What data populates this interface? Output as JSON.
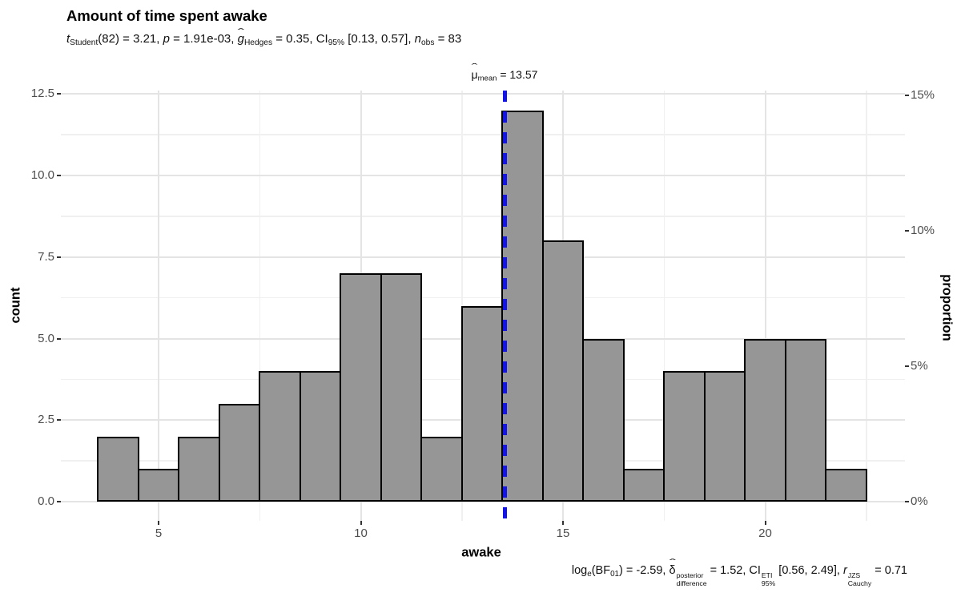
{
  "title": "Amount of time spent awake",
  "subtitle": {
    "segments": [
      {
        "v": "i",
        "t": "t"
      },
      {
        "v": "sub",
        "t": "Student"
      },
      {
        "v": "n",
        "t": "(82) = 3.21, "
      },
      {
        "v": "i",
        "t": "p"
      },
      {
        "v": "n",
        "t": " = 1.91e-03, "
      },
      {
        "v": "ihat",
        "t": "g"
      },
      {
        "v": "sub",
        "t": "Hedges"
      },
      {
        "v": "n",
        "t": " = 0.35, CI"
      },
      {
        "v": "sub",
        "t": "95%"
      },
      {
        "v": "n",
        "t": " [0.13, 0.57], "
      },
      {
        "v": "i",
        "t": "n"
      },
      {
        "v": "sub",
        "t": "obs"
      },
      {
        "v": "n",
        "t": " = 83"
      }
    ]
  },
  "caption": {
    "segments": [
      {
        "v": "n",
        "t": "log"
      },
      {
        "v": "sub",
        "t": "e"
      },
      {
        "v": "n",
        "t": "(BF"
      },
      {
        "v": "sub",
        "t": "01"
      },
      {
        "v": "n",
        "t": ") = -2.59, "
      },
      {
        "v": "hat",
        "t": "δ"
      },
      {
        "v": "stack",
        "sup": "posterior",
        "sub": "difference"
      },
      {
        "v": "n",
        "t": " = 1.52, CI"
      },
      {
        "v": "stack",
        "sup": "ETI",
        "sub": "95%"
      },
      {
        "v": "n",
        "t": " [0.56, 2.49], "
      },
      {
        "v": "i",
        "t": "r"
      },
      {
        "v": "stack",
        "sup": "JZS",
        "sub": "Cauchy"
      },
      {
        "v": "n",
        "t": " = 0.71"
      }
    ]
  },
  "mean_annotation": {
    "segments": [
      {
        "v": "hat",
        "t": "μ"
      },
      {
        "v": "sub",
        "t": "mean"
      },
      {
        "v": "n",
        "t": " = 13.57"
      }
    ],
    "value": 13.57
  },
  "axes": {
    "left": {
      "title": "count",
      "tick_labels": [
        "0.0",
        "2.5",
        "5.0",
        "7.5",
        "10.0",
        "12.5"
      ]
    },
    "right": {
      "title": "proportion",
      "tick_labels": [
        "0%",
        "5%",
        "10%",
        "15%"
      ]
    },
    "bottom": {
      "title": "awake",
      "tick_labels": [
        "5",
        "10",
        "15",
        "20"
      ]
    }
  },
  "stats": {
    "t": 3.21,
    "df": 82,
    "p": "1.91e-03",
    "g_hedges": 0.35,
    "ci_level": "95%",
    "ci": [
      0.13,
      0.57
    ],
    "n_obs": 83,
    "log_e_BF01": -2.59,
    "delta_difference_posterior": 1.52,
    "eti_ci_95": [
      0.56,
      2.49
    ],
    "r_cauchy_jzs": 0.71,
    "mean": 13.57
  },
  "chart_data": {
    "type": "bar",
    "subtype": "histogram",
    "title": "Amount of time spent awake",
    "xlabel": "awake",
    "ylabel": "count",
    "y2label": "proportion",
    "bin_width": 1,
    "bin_edges": [
      3.5,
      4.5,
      5.5,
      6.5,
      7.5,
      8.5,
      9.5,
      10.5,
      11.5,
      12.5,
      13.5,
      14.5,
      15.5,
      16.5,
      17.5,
      18.5,
      19.5,
      20.5,
      21.5,
      22.5
    ],
    "counts": [
      2,
      1,
      2,
      3,
      4,
      4,
      7,
      7,
      2,
      6,
      12,
      8,
      5,
      1,
      4,
      4,
      5,
      5,
      1
    ],
    "n_obs": 83,
    "mean_line_x": 13.57,
    "x_ticks": [
      5,
      10,
      15,
      20
    ],
    "y_ticks": [
      0,
      2.5,
      5,
      7.5,
      10,
      12.5
    ],
    "y2_ticks_percent": [
      0,
      5,
      10,
      15
    ],
    "xlim": [
      2.55,
      23.45
    ],
    "ylim": [
      -0.6,
      12.6
    ],
    "grid": true,
    "legend": "none"
  },
  "colors": {
    "bar_fill": "#969696",
    "bar_border": "#000000",
    "centrality_line": "#1414e8",
    "grid_major": "#e4e4e4",
    "grid_minor": "#f0f0f0",
    "axis_tick": "#333333",
    "tick_label": "#4d4d4d",
    "panel_bg": "#ffffff",
    "text": "#000000"
  }
}
